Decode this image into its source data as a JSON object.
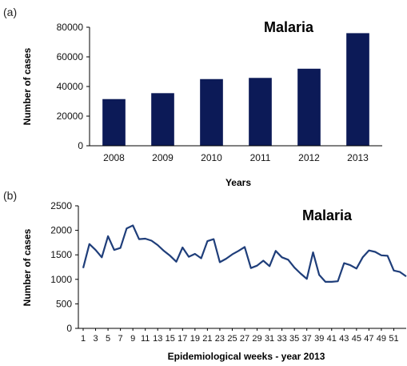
{
  "chart_data": [
    {
      "panel_label": "(a)",
      "type": "bar",
      "title": "Malaria",
      "xlabel": "Years",
      "ylabel": "Number of cases",
      "categories": [
        "2008",
        "2009",
        "2010",
        "2011",
        "2012",
        "2013"
      ],
      "values": [
        31500,
        35500,
        45000,
        45800,
        52000,
        76000
      ],
      "ylim": [
        0,
        80000
      ],
      "yticks": [
        0,
        20000,
        40000,
        60000,
        80000
      ],
      "grid": false,
      "bar_color": "#0c1a57"
    },
    {
      "panel_label": "(b)",
      "type": "line",
      "title": "Malaria",
      "xlabel": "Epidemiological weeks  - year 2013",
      "ylabel": "Number of cases",
      "x": [
        1,
        2,
        3,
        4,
        5,
        6,
        7,
        8,
        9,
        10,
        11,
        12,
        13,
        14,
        15,
        16,
        17,
        18,
        19,
        20,
        21,
        22,
        23,
        24,
        25,
        26,
        27,
        28,
        29,
        30,
        31,
        32,
        33,
        34,
        35,
        36,
        37,
        38,
        39,
        40,
        41,
        42,
        43,
        44,
        45,
        46,
        47,
        48,
        49,
        50,
        51,
        52,
        53
      ],
      "values": [
        1230,
        1720,
        1600,
        1450,
        1880,
        1600,
        1640,
        2040,
        2100,
        1820,
        1830,
        1790,
        1700,
        1580,
        1480,
        1360,
        1650,
        1460,
        1520,
        1430,
        1780,
        1820,
        1350,
        1420,
        1510,
        1580,
        1660,
        1230,
        1280,
        1380,
        1270,
        1580,
        1450,
        1400,
        1240,
        1120,
        1010,
        1550,
        1090,
        950,
        950,
        960,
        1330,
        1290,
        1220,
        1450,
        1590,
        1560,
        1490,
        1480,
        1180,
        1150,
        1060
      ],
      "xticks": [
        "1",
        "3",
        "5",
        "7",
        "9",
        "11",
        "13",
        "15",
        "17",
        "19",
        "21",
        "23",
        "25",
        "27",
        "29",
        "31",
        "33",
        "35",
        "37",
        "39",
        "41",
        "43",
        "45",
        "47",
        "49",
        "51"
      ],
      "ylim": [
        0,
        2500
      ],
      "yticks": [
        0,
        500,
        1000,
        1500,
        2000,
        2500
      ],
      "grid": false,
      "line_color": "#1f3e7a"
    }
  ]
}
